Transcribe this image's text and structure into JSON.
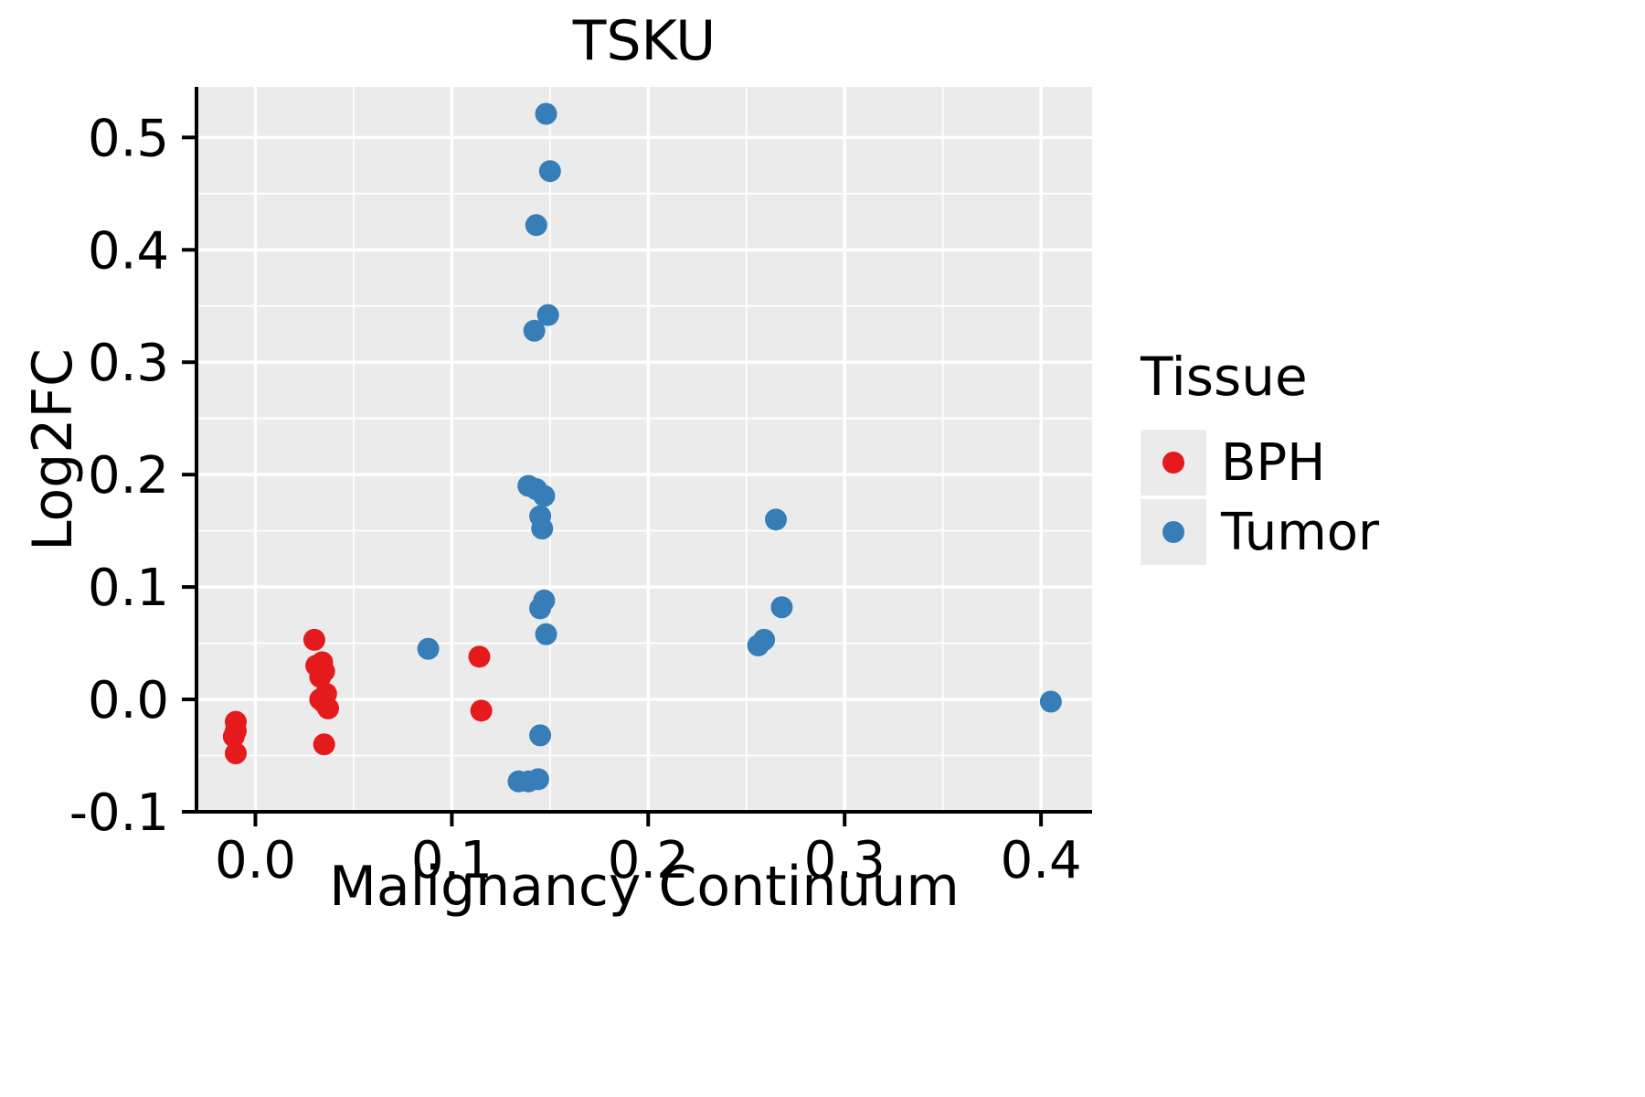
{
  "chart_data": {
    "type": "scatter",
    "title": "TSKU",
    "xlabel": "Malignancy Continuum",
    "ylabel": "Log2FC",
    "xlim": [
      -0.03,
      0.426
    ],
    "ylim": [
      -0.1,
      0.545
    ],
    "xtick_values": [
      0.0,
      0.1,
      0.2,
      0.3,
      0.4
    ],
    "xtick_labels": [
      "0.0",
      "0.1",
      "0.2",
      "0.3",
      "0.4"
    ],
    "ytick_values": [
      -0.1,
      0.0,
      0.1,
      0.2,
      0.3,
      0.4,
      0.5
    ],
    "ytick_labels": [
      "-0.1",
      "0.0",
      "0.1",
      "0.2",
      "0.3",
      "0.4",
      "0.5"
    ],
    "x_minor_ticks": [
      0.05,
      0.15,
      0.25,
      0.35
    ],
    "y_minor_ticks": [
      -0.05,
      0.05,
      0.15,
      0.25,
      0.35,
      0.45
    ],
    "grid": true,
    "legend_title": "Tissue",
    "legend_position": "right",
    "series": [
      {
        "name": "BPH",
        "color": "#e41a1c",
        "points": [
          [
            -0.01,
            -0.02
          ],
          [
            -0.01,
            -0.028
          ],
          [
            -0.011,
            -0.033
          ],
          [
            -0.01,
            -0.048
          ],
          [
            0.03,
            0.053
          ],
          [
            0.031,
            0.03
          ],
          [
            0.034,
            0.033
          ],
          [
            0.035,
            0.025
          ],
          [
            0.033,
            0.02
          ],
          [
            0.036,
            0.005
          ],
          [
            0.033,
            0.0
          ],
          [
            0.035,
            -0.003
          ],
          [
            0.037,
            -0.008
          ],
          [
            0.035,
            -0.04
          ],
          [
            0.114,
            0.038
          ],
          [
            0.115,
            -0.01
          ]
        ]
      },
      {
        "name": "Tumor",
        "color": "#377eb8",
        "points": [
          [
            0.148,
            0.521
          ],
          [
            0.15,
            0.47
          ],
          [
            0.143,
            0.422
          ],
          [
            0.149,
            0.342
          ],
          [
            0.142,
            0.328
          ],
          [
            0.139,
            0.19
          ],
          [
            0.143,
            0.187
          ],
          [
            0.147,
            0.181
          ],
          [
            0.145,
            0.163
          ],
          [
            0.146,
            0.152
          ],
          [
            0.147,
            0.088
          ],
          [
            0.145,
            0.081
          ],
          [
            0.148,
            0.058
          ],
          [
            0.088,
            0.045
          ],
          [
            0.145,
            -0.032
          ],
          [
            0.134,
            -0.073
          ],
          [
            0.139,
            -0.073
          ],
          [
            0.144,
            -0.071
          ],
          [
            0.265,
            0.16
          ],
          [
            0.268,
            0.082
          ],
          [
            0.256,
            0.048
          ],
          [
            0.259,
            0.053
          ],
          [
            0.405,
            -0.002
          ]
        ]
      }
    ]
  },
  "colors": {
    "panel_bg": "#ebebeb",
    "grid": "#ffffff",
    "axis": "#000000",
    "text": "#000000"
  }
}
